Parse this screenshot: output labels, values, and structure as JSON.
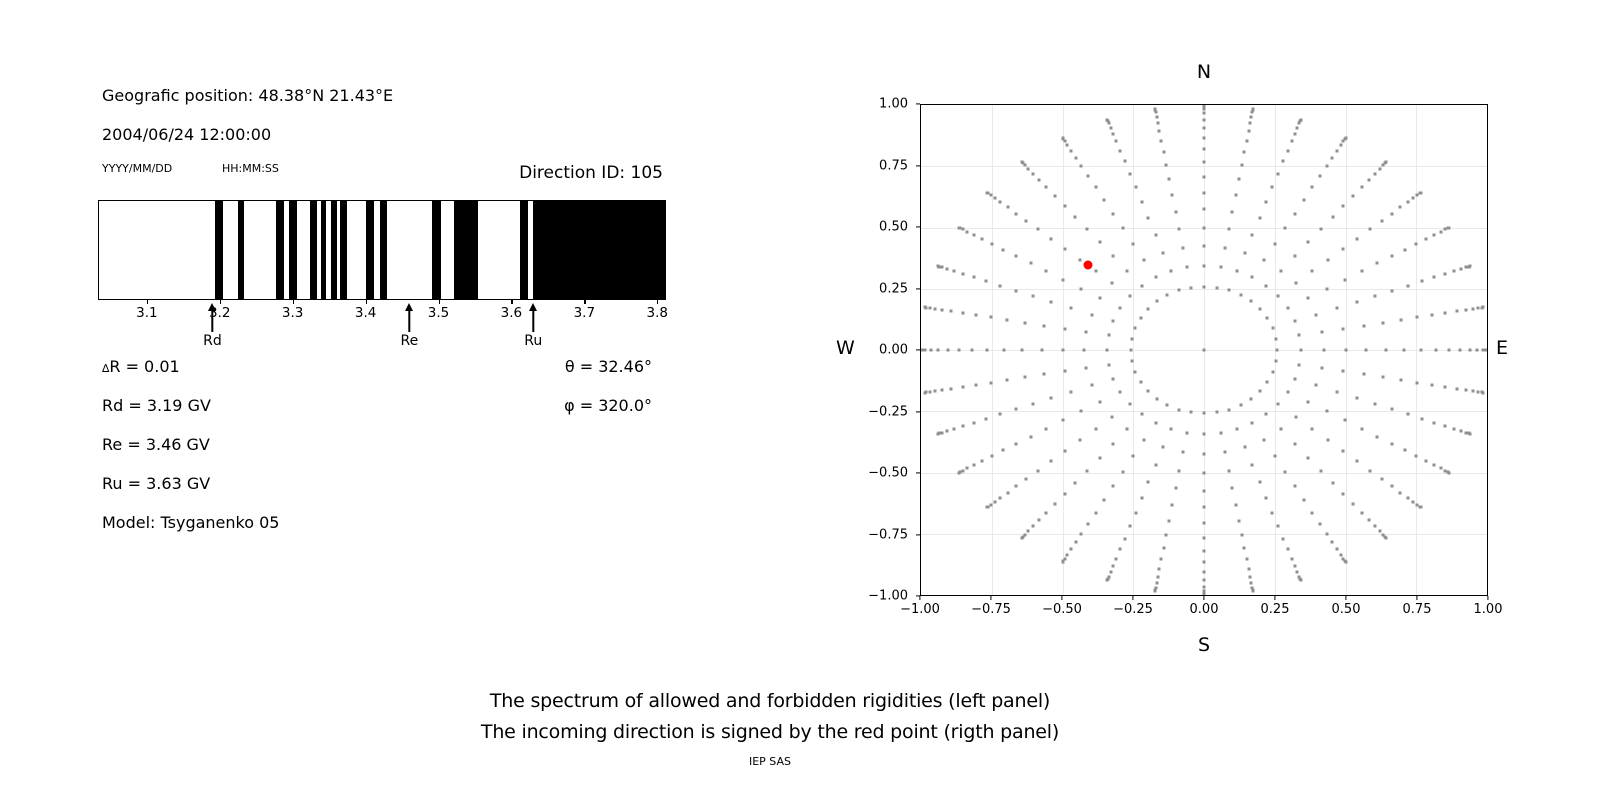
{
  "header": {
    "position_line": "Geografic position: 48.38°N 21.43°E",
    "datetime_line": "2004/06/24 12:00:00",
    "date_format_hint": "YYYY/MM/DD",
    "time_format_hint": "HH:MM:SS",
    "direction_id": "Direction ID: 105"
  },
  "info": {
    "delta_symbol": "∆",
    "delta_rest": "R = 0.01",
    "rd": "Rd = 3.19 GV",
    "re": "Re = 3.46 GV",
    "ru": "Ru = 3.63 GV",
    "model": "Model: Tsyganenko 05",
    "theta": "θ = 32.46°",
    "phi": "φ = 320.0°"
  },
  "caption": {
    "line1": "The spectrum of allowed and forbidden rigidities (left panel)",
    "line2": "The incoming direction is signed by the red point (rigth panel)",
    "credit": "IEP SAS"
  },
  "chart_data": [
    {
      "type": "bar",
      "subtype": "rigidity-barcode-spectrum",
      "description": "Allowed (black) and forbidden (white) rigidity bands",
      "xlim": [
        3.033,
        3.812
      ],
      "xticks": [
        {
          "value": 3.1,
          "label": "3.1"
        },
        {
          "value": 3.2,
          "label": "3.2"
        },
        {
          "value": 3.3,
          "label": "3.3"
        },
        {
          "value": 3.4,
          "label": "3.4"
        },
        {
          "value": 3.5,
          "label": "3.5"
        },
        {
          "value": 3.6,
          "label": "3.6"
        },
        {
          "value": 3.7,
          "label": "3.7"
        },
        {
          "value": 3.8,
          "label": "3.8"
        }
      ],
      "black_bands_gv": [
        [
          3.193,
          3.204
        ],
        [
          3.224,
          3.232
        ],
        [
          3.276,
          3.287
        ],
        [
          3.294,
          3.305
        ],
        [
          3.323,
          3.333
        ],
        [
          3.338,
          3.346
        ],
        [
          3.352,
          3.361
        ],
        [
          3.365,
          3.375
        ],
        [
          3.401,
          3.411
        ],
        [
          3.42,
          3.43
        ],
        [
          3.492,
          3.504
        ],
        [
          3.521,
          3.554
        ],
        [
          3.612,
          3.623
        ],
        [
          3.63,
          3.812
        ]
      ],
      "arrows": [
        {
          "label": "Rd",
          "x": 3.19
        },
        {
          "label": "Re",
          "x": 3.46
        },
        {
          "label": "Ru",
          "x": 3.63
        }
      ],
      "band_color": "#000000"
    },
    {
      "type": "scatter",
      "subtype": "incoming-direction-grid",
      "xlim": [
        -1,
        1
      ],
      "ylim": [
        -1,
        1
      ],
      "xticks": [
        {
          "value": -1.0,
          "label": "−1.00"
        },
        {
          "value": -0.75,
          "label": "−0.75"
        },
        {
          "value": -0.5,
          "label": "−0.50"
        },
        {
          "value": -0.25,
          "label": "−0.25"
        },
        {
          "value": 0.0,
          "label": "0.00"
        },
        {
          "value": 0.25,
          "label": "0.25"
        },
        {
          "value": 0.5,
          "label": "0.50"
        },
        {
          "value": 0.75,
          "label": "0.75"
        },
        {
          "value": 1.0,
          "label": "1.00"
        }
      ],
      "yticks": [
        {
          "value": 1.0,
          "label": "1.00"
        },
        {
          "value": 0.75,
          "label": "0.75"
        },
        {
          "value": 0.5,
          "label": "0.50"
        },
        {
          "value": 0.25,
          "label": "0.25"
        },
        {
          "value": 0.0,
          "label": "0.00"
        },
        {
          "value": -0.25,
          "label": "−0.25"
        },
        {
          "value": -0.5,
          "label": "−0.50"
        },
        {
          "value": -0.75,
          "label": "−0.75"
        },
        {
          "value": -1.0,
          "label": "−1.00"
        }
      ],
      "grid_on": true,
      "direction_labels": {
        "top": "N",
        "bottom": "S",
        "left": "W",
        "right": "E"
      },
      "dot_grid": {
        "azimuth_start_deg": 0,
        "azimuth_step_deg": 10,
        "azimuth_count": 36,
        "zenith_deg": [
          15,
          20,
          25,
          30,
          35,
          40,
          45,
          50,
          55,
          60,
          65,
          70,
          75,
          80,
          85,
          90
        ],
        "radius_mapping": "sin(zenith)",
        "center_dot": true,
        "dot_color": "#8f8f8f"
      },
      "red_point": {
        "x": -0.41,
        "y": 0.345,
        "theta_deg": 32.46,
        "phi_deg": 320.0,
        "color": "#ff0000"
      }
    }
  ]
}
